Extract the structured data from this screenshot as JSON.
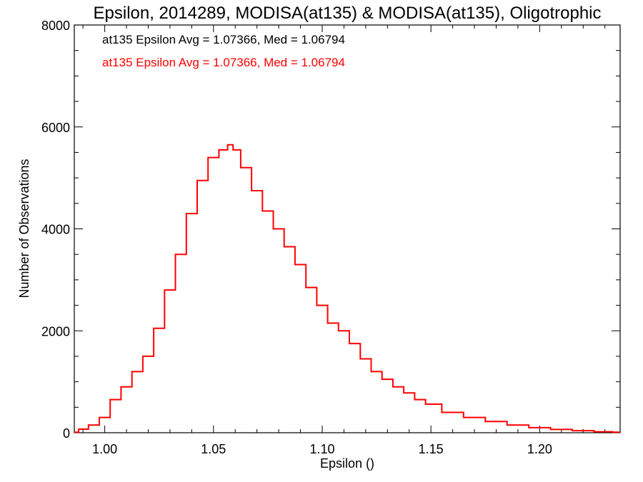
{
  "chart_data": {
    "type": "line",
    "style": "step histogram",
    "title": "Epsilon, 2014289, MODISA(at135) & MODISA(at135), Oligotrophic",
    "xlabel": "Epsilon ()",
    "ylabel": "Number of Observations",
    "xlim": [
      0.986,
      1.237
    ],
    "ylim": [
      0,
      8000
    ],
    "x_ticks": [
      1.0,
      1.05,
      1.1,
      1.15,
      1.2
    ],
    "x_tick_labels": [
      "1.00",
      "1.05",
      "1.10",
      "1.15",
      "1.20"
    ],
    "y_ticks": [
      0,
      2000,
      4000,
      6000,
      8000
    ],
    "y_tick_labels": [
      "0",
      "2000",
      "4000",
      "6000",
      "8000"
    ],
    "grid": false,
    "legend_position": "top-left",
    "annotations": [
      {
        "text": "at135 Epsilon Avg = 1.07366, Med = 1.06794",
        "color": "#000000"
      },
      {
        "text": "at135 Epsilon Avg = 1.07366, Med = 1.06794",
        "color": "#ff0000"
      }
    ],
    "series": [
      {
        "color": "#ff0000",
        "x": [
          0.986,
          0.99,
          0.995,
          1.0,
          1.005,
          1.01,
          1.015,
          1.02,
          1.025,
          1.03,
          1.035,
          1.04,
          1.045,
          1.05,
          1.055,
          1.058,
          1.06,
          1.065,
          1.07,
          1.075,
          1.08,
          1.085,
          1.09,
          1.095,
          1.1,
          1.105,
          1.11,
          1.115,
          1.12,
          1.125,
          1.13,
          1.135,
          1.14,
          1.145,
          1.15,
          1.16,
          1.17,
          1.18,
          1.19,
          1.2,
          1.21,
          1.22,
          1.23,
          1.237
        ],
        "y": [
          10,
          70,
          150,
          300,
          650,
          900,
          1200,
          1500,
          2050,
          2800,
          3500,
          4300,
          4950,
          5400,
          5550,
          5650,
          5550,
          5200,
          4750,
          4350,
          4000,
          3650,
          3300,
          2850,
          2500,
          2150,
          2000,
          1750,
          1450,
          1200,
          1050,
          900,
          780,
          650,
          560,
          400,
          300,
          220,
          150,
          100,
          65,
          40,
          20,
          10
        ]
      }
    ]
  }
}
